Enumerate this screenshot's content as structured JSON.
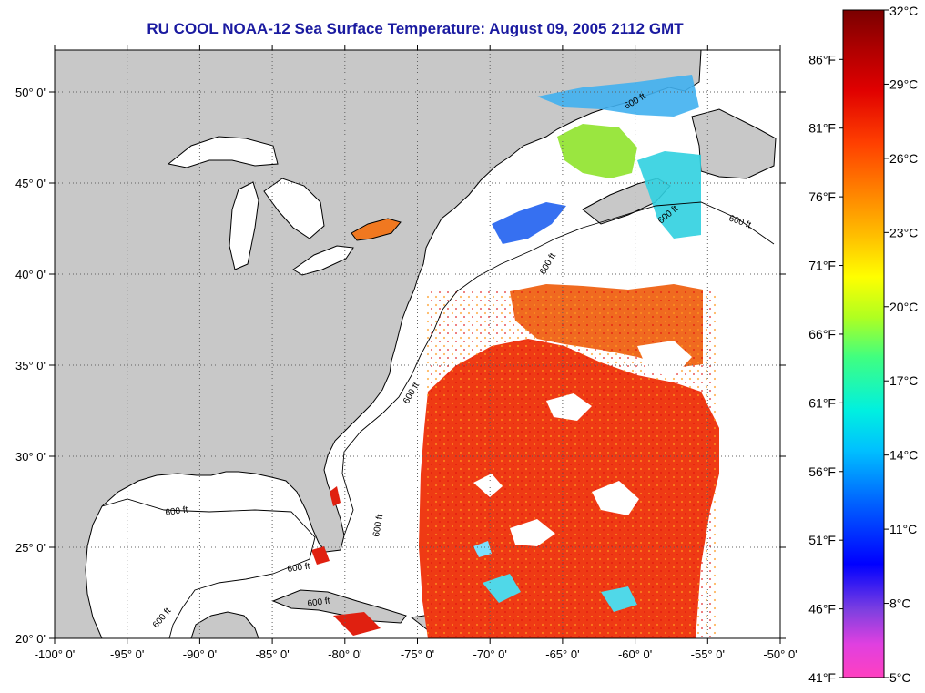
{
  "title": "RU COOL  NOAA-12  Sea Surface Temperature:  August 09, 2005 2112 GMT",
  "map": {
    "lon_range": [
      -100,
      -50
    ],
    "lat_range": [
      20,
      52.3
    ],
    "lon_ticks": [
      {
        "value": -100,
        "label": "-100° 0'"
      },
      {
        "value": -95,
        "label": "-95° 0'"
      },
      {
        "value": -90,
        "label": "-90° 0'"
      },
      {
        "value": -85,
        "label": "-85° 0'"
      },
      {
        "value": -80,
        "label": "-80° 0'"
      },
      {
        "value": -75,
        "label": "-75° 0'"
      },
      {
        "value": -70,
        "label": "-70° 0'"
      },
      {
        "value": -65,
        "label": "-65° 0'"
      },
      {
        "value": -60,
        "label": "-60° 0'"
      },
      {
        "value": -55,
        "label": "-55° 0'"
      },
      {
        "value": -50,
        "label": "-50° 0'"
      }
    ],
    "lat_ticks": [
      {
        "value": 20,
        "label": "20° 0'"
      },
      {
        "value": 25,
        "label": "25° 0'"
      },
      {
        "value": 30,
        "label": "30° 0'"
      },
      {
        "value": 35,
        "label": "35° 0'"
      },
      {
        "value": 40,
        "label": "40° 0'"
      },
      {
        "value": 45,
        "label": "45° 0'"
      },
      {
        "value": 50,
        "label": "50° 0'"
      }
    ],
    "contour_labels": [
      "600 ft",
      "600 ft",
      "600 ft",
      "600 ft",
      "600 ft",
      "600 ft",
      "600 ft",
      "600 ft",
      "600 ft",
      "600 ft"
    ],
    "colors": {
      "land": "#c8c8c8",
      "no_data_water": "#ffffff",
      "frame": "#000000"
    }
  },
  "colorbar": {
    "celsius_labels": [
      "32°C",
      "29°C",
      "26°C",
      "23°C",
      "20°C",
      "17°C",
      "14°C",
      "11°C",
      "8°C",
      "5°C"
    ],
    "fahrenheit_labels": [
      "86°F",
      "81°F",
      "76°F",
      "71°F",
      "66°F",
      "61°F",
      "56°F",
      "51°F",
      "46°F",
      "41°F"
    ],
    "celsius_values": [
      32,
      29,
      26,
      23,
      20,
      17,
      14,
      11,
      8,
      5
    ],
    "fahrenheit_values": [
      86,
      81,
      76,
      71,
      66,
      61,
      56,
      51,
      46,
      41
    ],
    "range_c": [
      5,
      32
    ]
  }
}
